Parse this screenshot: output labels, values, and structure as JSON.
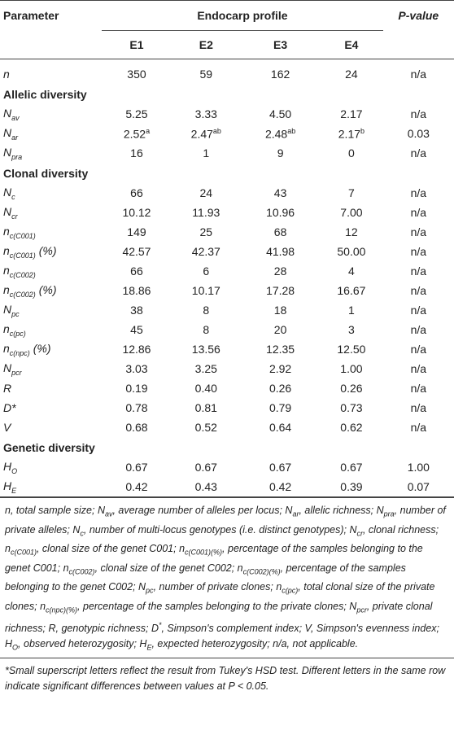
{
  "header": {
    "parameter": "Parameter",
    "endocarp_profile": "Endocarp profile",
    "pvalue": "P-value",
    "columns": [
      "E1",
      "E2",
      "E3",
      "E4"
    ]
  },
  "rows": [
    {
      "p_main": "n",
      "p_sub": "",
      "p_suffix": "",
      "e1": "350",
      "e2": "59",
      "e3": "162",
      "e4": "24",
      "p": "n/a"
    },
    {
      "section": "Allelic diversity"
    },
    {
      "p_main": "N",
      "p_sub": "av",
      "p_suffix": "",
      "e1": "5.25",
      "e2": "3.33",
      "e3": "4.50",
      "e4": "2.17",
      "p": "n/a"
    },
    {
      "p_main": "N",
      "p_sub": "ar",
      "p_suffix": "",
      "e1": "2.52",
      "e1_sup": "a",
      "e2": "2.47",
      "e2_sup": "ab",
      "e3": "2.48",
      "e3_sup": "ab",
      "e4": "2.17",
      "e4_sup": "b",
      "p": "0.03"
    },
    {
      "p_main": "N",
      "p_sub": "pra",
      "p_suffix": "",
      "e1": "16",
      "e2": "1",
      "e3": "9",
      "e4": "0",
      "p": "n/a"
    },
    {
      "section": "Clonal diversity"
    },
    {
      "p_main": "N",
      "p_sub": "c",
      "p_suffix": "",
      "e1": "66",
      "e2": "24",
      "e3": "43",
      "e4": "7",
      "p": "n/a"
    },
    {
      "p_main": "N",
      "p_sub": "cr",
      "p_suffix": "",
      "e1": "10.12",
      "e2": "11.93",
      "e3": "10.96",
      "e4": "7.00",
      "p": "n/a"
    },
    {
      "p_main": "n",
      "p_sub": "c(C001)",
      "p_suffix": "",
      "e1": "149",
      "e2": "25",
      "e3": "68",
      "e4": "12",
      "p": "n/a"
    },
    {
      "p_main": "n",
      "p_sub": "c(C001)",
      "p_suffix": " (%)",
      "e1": "42.57",
      "e2": "42.37",
      "e3": "41.98",
      "e4": "50.00",
      "p": "n/a"
    },
    {
      "p_main": "n",
      "p_sub": "c(C002)",
      "p_suffix": "",
      "e1": "66",
      "e2": "6",
      "e3": "28",
      "e4": "4",
      "p": "n/a"
    },
    {
      "p_main": "n",
      "p_sub": "c(C002)",
      "p_suffix": " (%)",
      "e1": "18.86",
      "e2": "10.17",
      "e3": "17.28",
      "e4": "16.67",
      "p": "n/a"
    },
    {
      "p_main": "N",
      "p_sub": "pc",
      "p_suffix": "",
      "e1": "38",
      "e2": "8",
      "e3": "18",
      "e4": "1",
      "p": "n/a"
    },
    {
      "p_main": "n",
      "p_sub": "c(pc)",
      "p_suffix": "",
      "e1": "45",
      "e2": "8",
      "e3": "20",
      "e4": "3",
      "p": "n/a"
    },
    {
      "p_main": "n",
      "p_sub": "c(npc)",
      "p_suffix": " (%)",
      "e1": "12.86",
      "e2": "13.56",
      "e3": "12.35",
      "e4": "12.50",
      "p": "n/a"
    },
    {
      "p_main": "N",
      "p_sub": "pcr",
      "p_suffix": "",
      "e1": "3.03",
      "e2": "3.25",
      "e3": "2.92",
      "e4": "1.00",
      "p": "n/a"
    },
    {
      "p_main": "R",
      "p_sub": "",
      "p_suffix": "",
      "e1": "0.19",
      "e2": "0.40",
      "e3": "0.26",
      "e4": "0.26",
      "p": "n/a"
    },
    {
      "p_main": "D*",
      "p_sub": "",
      "p_suffix": "",
      "e1": "0.78",
      "e2": "0.81",
      "e3": "0.79",
      "e4": "0.73",
      "p": "n/a"
    },
    {
      "p_main": "V",
      "p_sub": "",
      "p_suffix": "",
      "e1": "0.68",
      "e2": "0.52",
      "e3": "0.64",
      "e4": "0.62",
      "p": "n/a"
    },
    {
      "section": "Genetic diversity"
    },
    {
      "p_main": "H",
      "p_sub": "O",
      "p_suffix": "",
      "e1": "0.67",
      "e2": "0.67",
      "e3": "0.67",
      "e4": "0.67",
      "p": "1.00"
    },
    {
      "p_main": "H",
      "p_sub": "E",
      "p_suffix": "",
      "e1": "0.42",
      "e2": "0.43",
      "e3": "0.42",
      "e4": "0.39",
      "p": "0.07"
    }
  ],
  "footnote_html": "n, total sample size; N<sub>av</sub>, average number of alleles per locus; N<sub>ar</sub>, allelic richness; N<sub>pra</sub>, number of private alleles; N<sub>c</sub>, number of multi-locus genotypes (i.e. distinct genotypes); N<sub>cr</sub>, clonal richness; n<sub>c(C001)</sub>, clonal size of the genet C001; n<sub>c(C001)(%)</sub>, percentage of the samples belonging to the genet C001; n<sub>c(C002)</sub>, clonal size of the genet C002; n<sub>c(C002)(%)</sub>, percentage of the samples belonging to the genet C002; N<sub>pc</sub>, number of private clones; n<sub>c(pc)</sub>, total clonal size of the private clones; n<sub>c(npc)(%)</sub>, percentage of the samples belonging to the private clones; N<sub>pcr</sub>, private clonal richness; R, genotypic richness; D<sup>*</sup>, Simpson's complement index; V, Simpson's evenness index; H<sub>O</sub>, observed heterozygosity; H<sub>E</sub>, expected heterozygosity; n/a, not applicable.",
  "footnote2": "*Small superscript letters reflect the result from Tukey's HSD test. Different letters in the same row indicate significant differences between values at P < 0.05."
}
